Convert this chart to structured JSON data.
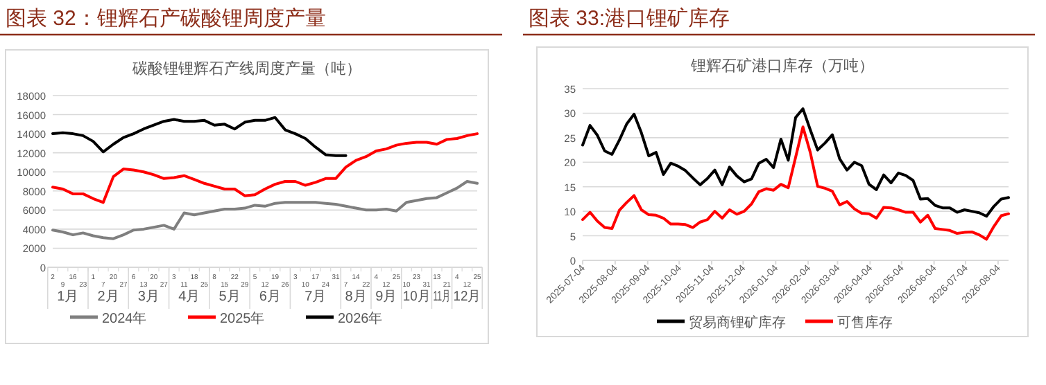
{
  "chart_data": [
    {
      "type": "line",
      "title": "图表 32：锂辉石产碳酸锂周度产量",
      "subtitle": "碳酸锂锂辉石产线周度产量（吨）",
      "categories": [
        "2",
        "9",
        "16",
        "23",
        "1",
        "7",
        "20",
        "27",
        "6",
        "13",
        "20",
        "27",
        "3",
        "11",
        "18",
        "25",
        "8",
        "15",
        "22",
        "29",
        "5",
        "12",
        "19",
        "26",
        "3",
        "10",
        "17",
        "24",
        "31",
        "7",
        "14",
        "22",
        "4",
        "12",
        "25",
        "10",
        "23",
        "31",
        "13",
        "21",
        "4",
        "12",
        "25"
      ],
      "annotations": [
        "1月",
        "2月",
        "3月",
        "4月",
        "5月",
        "6月",
        "7月",
        "8月",
        "9月",
        "10月",
        "11月",
        "12月"
      ],
      "series": [
        {
          "name": "2024年",
          "color": "#7f7f7f",
          "values": [
            3900,
            3700,
            3400,
            3600,
            3300,
            3100,
            3000,
            3400,
            3900,
            4000,
            4200,
            4400,
            4000,
            5700,
            5500,
            5700,
            5900,
            6100,
            6100,
            6200,
            6500,
            6400,
            6700,
            6800,
            6800,
            6800,
            6800,
            6700,
            6600,
            6400,
            6200,
            6000,
            6000,
            6100,
            5900,
            6800,
            7000,
            7200,
            7300,
            7800,
            8300,
            9000,
            8800
          ]
        },
        {
          "name": "2025年",
          "color": "#ff0000",
          "values": [
            8400,
            8200,
            7700,
            7700,
            7200,
            6800,
            9500,
            10300,
            10200,
            10000,
            9700,
            9300,
            9400,
            9600,
            9200,
            8800,
            8500,
            8200,
            8200,
            7500,
            7600,
            8200,
            8700,
            9000,
            9000,
            8600,
            8900,
            9300,
            9300,
            10500,
            11200,
            11600,
            12200,
            12400,
            12800,
            13000,
            13100,
            13100,
            12900,
            13400,
            13500,
            13800,
            14000
          ]
        },
        {
          "name": "2026年",
          "color": "#000000",
          "values": [
            14000,
            14100,
            14000,
            13800,
            13200,
            12100,
            12900,
            13600,
            14000,
            14500,
            14900,
            15300,
            15500,
            15300,
            15300,
            15400,
            14900,
            15000,
            14500,
            15200,
            15400,
            15400,
            15700,
            14400,
            14000,
            13500,
            12600,
            11800,
            11700,
            11700,
            null,
            null,
            null,
            null,
            null,
            null,
            null,
            null,
            null,
            null,
            null,
            null,
            null
          ]
        }
      ],
      "ylim": [
        0,
        18000
      ],
      "yticks": [
        0,
        2000,
        4000,
        6000,
        8000,
        10000,
        12000,
        14000,
        16000,
        18000
      ],
      "grid": "y",
      "legend": "bottom",
      "line_style": "solid",
      "marker": "none"
    },
    {
      "type": "line",
      "title": "图表 33:港口锂矿库存",
      "subtitle": "锂辉石矿港口库存（万吨）",
      "x": [
        "2025-07-04",
        "2025-07-11",
        "2025-07-18",
        "2025-07-25",
        "2025-08-01",
        "2025-08-08",
        "2025-08-15",
        "2025-08-22",
        "2025-08-29",
        "2025-09-05",
        "2025-09-12",
        "2025-09-19",
        "2025-09-26",
        "2025-10-03",
        "2025-10-10",
        "2025-10-17",
        "2025-10-24",
        "2025-10-31",
        "2025-11-07",
        "2025-11-14",
        "2025-11-21",
        "2025-11-28",
        "2025-12-05",
        "2025-12-12",
        "2025-12-19",
        "2025-12-26",
        "2026-01-02",
        "2026-01-09",
        "2026-01-16",
        "2026-01-23",
        "2026-01-30",
        "2026-02-06",
        "2026-02-13",
        "2026-02-20",
        "2026-02-27",
        "2026-03-06",
        "2026-03-13",
        "2026-03-20",
        "2026-03-27",
        "2026-04-03",
        "2026-04-10",
        "2026-04-17",
        "2026-04-24",
        "2026-05-01",
        "2026-05-08",
        "2026-05-15",
        "2026-05-22",
        "2026-05-29",
        "2026-06-05",
        "2026-06-12",
        "2026-06-19",
        "2026-06-26",
        "2026-07-03",
        "2026-07-10",
        "2026-07-17",
        "2026-07-24",
        "2026-07-31",
        "2026-08-07",
        "2026-08-14"
      ],
      "series": [
        {
          "name": "贸易商锂矿库存",
          "color": "#000000",
          "values": [
            23.5,
            27.5,
            25.5,
            22.3,
            21.6,
            24.5,
            27.8,
            29.8,
            26,
            21.3,
            22,
            17.5,
            19.8,
            19.2,
            18.3,
            16.8,
            15.4,
            16.7,
            18.4,
            15.4,
            19,
            17.2,
            16,
            16.6,
            19.8,
            20.6,
            18.9,
            24.7,
            20.4,
            29.1,
            30.9,
            26.6,
            22.5,
            23.9,
            25.6,
            20.7,
            18.4,
            20,
            19.3,
            15.5,
            14.4,
            17.4,
            15.8,
            17.8,
            17.3,
            16.3,
            12.5,
            12.6,
            11.2,
            10.7,
            10.7,
            9.8,
            10.3,
            10,
            9.7,
            9,
            11,
            12.5,
            12.8
          ]
        },
        {
          "name": "可售库存",
          "color": "#ff0000",
          "values": [
            8.3,
            9.8,
            8,
            6.7,
            6.5,
            10.2,
            11.8,
            13.2,
            10.3,
            9.3,
            9.2,
            8.6,
            7.4,
            7.4,
            7.3,
            6.7,
            7.8,
            8.3,
            10,
            8.6,
            10.3,
            9.4,
            10,
            11.5,
            14,
            14.6,
            14.3,
            15.5,
            14.8,
            21,
            27.2,
            22,
            15.1,
            14.7,
            14.1,
            11.3,
            12,
            10.5,
            9.6,
            9.5,
            8.6,
            10.8,
            10.7,
            10.3,
            9.8,
            9.8,
            7.8,
            9.2,
            6.5,
            6.3,
            6.1,
            5.5,
            5.7,
            5.8,
            5.2,
            4.3,
            6.9,
            9.1,
            9.5
          ]
        }
      ],
      "xlim": [
        "2025-07-04",
        "2026-08-14"
      ],
      "xticks": [
        "2025-07-04",
        "2025-08-04",
        "2025-09-04",
        "2025-10-04",
        "2025-11-04",
        "2025-12-04",
        "2026-01-04",
        "2026-02-04",
        "2026-03-04",
        "2026-04-04",
        "2026-05-04",
        "2026-06-04",
        "2026-07-04",
        "2026-08-04"
      ],
      "ylim": [
        0,
        35
      ],
      "yticks": [
        0,
        5,
        10,
        15,
        20,
        25,
        30,
        35
      ],
      "grid": "y",
      "legend": "bottom",
      "line_style": "solid",
      "marker": "none"
    }
  ]
}
